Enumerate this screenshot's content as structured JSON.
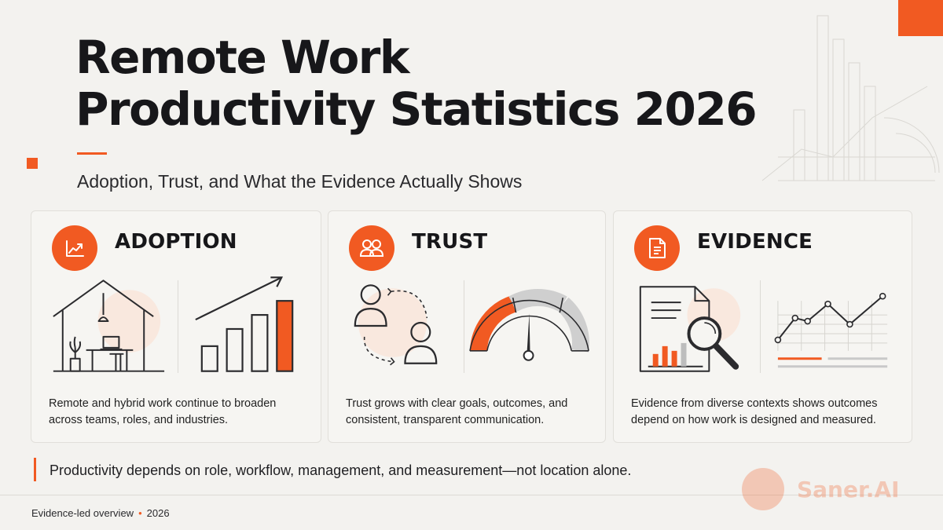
{
  "title": {
    "line1": "Remote Work",
    "line2": "Productivity Statistics 2026"
  },
  "subtitle": "Adoption, Trust, and What the Evidence Actually Shows",
  "cards": [
    {
      "heading": "ADOPTION",
      "icon": "trend-line-icon",
      "text": "Remote and hybrid work continue to broaden across teams, roles, and industries."
    },
    {
      "heading": "TRUST",
      "icon": "people-icon",
      "text": "Trust grows with clear goals, outcomes, and consistent, transparent communication."
    },
    {
      "heading": "EVIDENCE",
      "icon": "document-icon",
      "text": "Evidence from diverse contexts shows outcomes depend on how work is designed and measured."
    }
  ],
  "callout": "Productivity depends on role, workflow, management, and measurement—not location alone.",
  "footer": {
    "label": "Evidence-led overview",
    "separator": "•",
    "year": "2026"
  },
  "watermark": {
    "text": "Saner.AI"
  },
  "colors": {
    "accent": "#f15a22",
    "text": "#17171a",
    "background": "#f3f2ef",
    "muted": "#c9c9c9"
  }
}
